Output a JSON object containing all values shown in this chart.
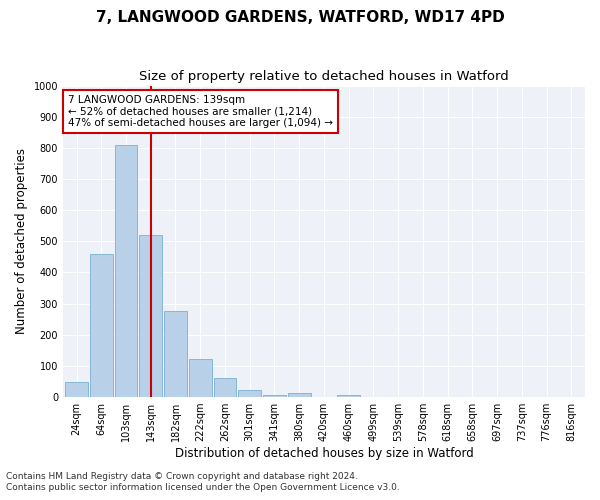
{
  "title_line1": "7, LANGWOOD GARDENS, WATFORD, WD17 4PD",
  "title_line2": "Size of property relative to detached houses in Watford",
  "xlabel": "Distribution of detached houses by size in Watford",
  "ylabel": "Number of detached properties",
  "categories": [
    "24sqm",
    "64sqm",
    "103sqm",
    "143sqm",
    "182sqm",
    "222sqm",
    "262sqm",
    "301sqm",
    "341sqm",
    "380sqm",
    "420sqm",
    "460sqm",
    "499sqm",
    "539sqm",
    "578sqm",
    "618sqm",
    "658sqm",
    "697sqm",
    "737sqm",
    "776sqm",
    "816sqm"
  ],
  "values": [
    47,
    460,
    810,
    520,
    275,
    122,
    60,
    22,
    8,
    12,
    0,
    8,
    0,
    0,
    0,
    0,
    0,
    0,
    0,
    0,
    0
  ],
  "bar_color": "#b8d0e8",
  "bar_edge_color": "#7aafd4",
  "highlight_index": 3,
  "highlight_line_color": "#cc0000",
  "ylim": [
    0,
    1000
  ],
  "yticks": [
    0,
    100,
    200,
    300,
    400,
    500,
    600,
    700,
    800,
    900,
    1000
  ],
  "annotation_text": "7 LANGWOOD GARDENS: 139sqm\n← 52% of detached houses are smaller (1,214)\n47% of semi-detached houses are larger (1,094) →",
  "annotation_box_color": "#ffffff",
  "annotation_box_edge": "#cc0000",
  "footer_line1": "Contains HM Land Registry data © Crown copyright and database right 2024.",
  "footer_line2": "Contains public sector information licensed under the Open Government Licence v3.0.",
  "bg_color": "#eef2f8",
  "fig_bg_color": "#ffffff",
  "grid_color": "#ffffff",
  "title_fontsize": 11,
  "subtitle_fontsize": 9.5,
  "tick_fontsize": 7,
  "axis_label_fontsize": 8.5,
  "footer_fontsize": 6.5,
  "annotation_fontsize": 7.5
}
